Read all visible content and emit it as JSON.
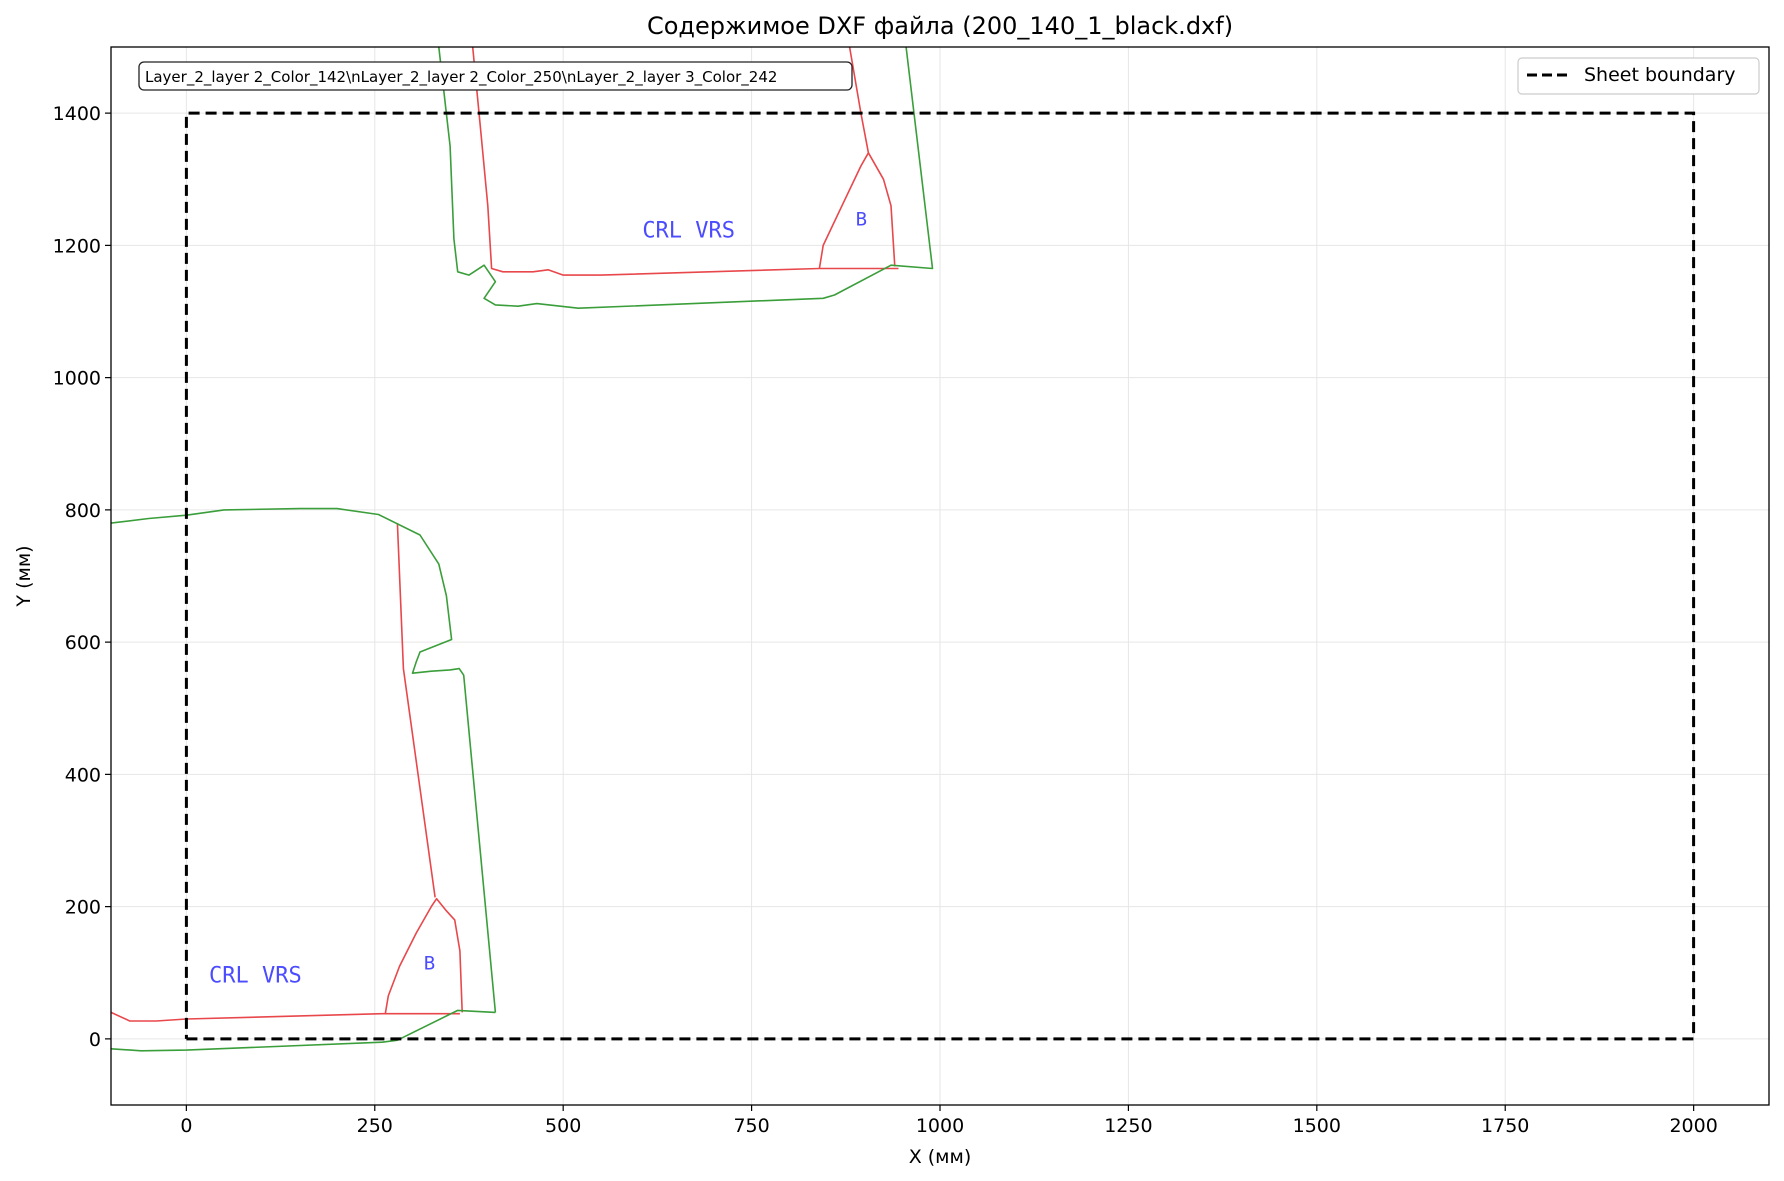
{
  "chart_data": {
    "type": "line",
    "title": "Содержимое DXF файла (200_140_1_black.dxf)",
    "xlabel": "X (мм)",
    "ylabel": "Y (мм)",
    "xlim": [
      -100,
      2100
    ],
    "ylim": [
      -100,
      1500
    ],
    "x_ticks": [
      0,
      250,
      500,
      750,
      1000,
      1250,
      1500,
      1750,
      2000
    ],
    "y_ticks": [
      0,
      200,
      400,
      600,
      800,
      1000,
      1200,
      1400
    ],
    "grid": true,
    "legend": {
      "placement": "top-right",
      "entries": [
        "Sheet boundary"
      ]
    },
    "layer_note": "Layer_2_layer 2_Color_142\\nLayer_2_layer 2_Color_250\\nLayer_2_layer 3_Color_242",
    "sheet_boundary": {
      "name": "Sheet boundary",
      "color": "#000000",
      "style": "dashed",
      "points": [
        [
          0,
          0
        ],
        [
          2000,
          0
        ],
        [
          2000,
          1400
        ],
        [
          0,
          1400
        ],
        [
          0,
          0
        ]
      ]
    },
    "series": [
      {
        "color": "#e8474b",
        "points": [
          [
            -100,
            40
          ],
          [
            -75,
            27
          ],
          [
            -40,
            27
          ],
          [
            0,
            30
          ],
          [
            260,
            38
          ],
          [
            363,
            38
          ]
        ]
      },
      {
        "color": "#e8474b",
        "points": [
          [
            264,
            38
          ],
          [
            268,
            65
          ],
          [
            283,
            110
          ],
          [
            305,
            160
          ],
          [
            325,
            200
          ],
          [
            332,
            212
          ],
          [
            344,
            195
          ],
          [
            356,
            180
          ],
          [
            363,
            133
          ],
          [
            366,
            40
          ]
        ]
      },
      {
        "color": "#e8474b",
        "points": [
          [
            280,
            780
          ],
          [
            288,
            560
          ],
          [
            330,
            214
          ]
        ]
      },
      {
        "color": "#3a9e3a",
        "points": [
          [
            -100,
            780
          ],
          [
            -50,
            787
          ],
          [
            0,
            792
          ],
          [
            50,
            800
          ],
          [
            150,
            802
          ],
          [
            200,
            802
          ],
          [
            255,
            793
          ],
          [
            310,
            762
          ],
          [
            335,
            718
          ],
          [
            345,
            670
          ],
          [
            352,
            604
          ],
          [
            310,
            585
          ],
          [
            305,
            570
          ],
          [
            300,
            553
          ],
          [
            325,
            556
          ],
          [
            350,
            558
          ],
          [
            362,
            560
          ],
          [
            368,
            550
          ],
          [
            410,
            40
          ]
        ]
      },
      {
        "color": "#3a9e3a",
        "points": [
          [
            -100,
            -15
          ],
          [
            -60,
            -18
          ],
          [
            0,
            -17
          ],
          [
            260,
            -5
          ],
          [
            280,
            -2
          ],
          [
            360,
            43
          ],
          [
            410,
            40
          ]
        ]
      },
      {
        "color": "#e8474b",
        "points": [
          [
            380,
            1500
          ],
          [
            390,
            1380
          ],
          [
            400,
            1260
          ],
          [
            405,
            1165
          ],
          [
            420,
            1160
          ],
          [
            460,
            1160
          ],
          [
            480,
            1163
          ],
          [
            500,
            1155
          ],
          [
            550,
            1155
          ],
          [
            840,
            1165
          ],
          [
            945,
            1165
          ]
        ]
      },
      {
        "color": "#e8474b",
        "points": [
          [
            840,
            1165
          ],
          [
            845,
            1200
          ],
          [
            870,
            1260
          ],
          [
            895,
            1320
          ],
          [
            905,
            1340
          ],
          [
            925,
            1300
          ],
          [
            935,
            1260
          ],
          [
            940,
            1168
          ]
        ]
      },
      {
        "color": "#e8474b",
        "points": [
          [
            880,
            1500
          ],
          [
            895,
            1400
          ],
          [
            905,
            1340
          ]
        ]
      },
      {
        "color": "#3a9e3a",
        "points": [
          [
            335,
            1500
          ],
          [
            350,
            1350
          ],
          [
            355,
            1210
          ],
          [
            360,
            1160
          ],
          [
            375,
            1155
          ],
          [
            395,
            1170
          ],
          [
            410,
            1145
          ],
          [
            395,
            1120
          ],
          [
            410,
            1110
          ],
          [
            440,
            1108
          ],
          [
            465,
            1112
          ],
          [
            520,
            1105
          ],
          [
            845,
            1120
          ],
          [
            860,
            1125
          ],
          [
            935,
            1170
          ],
          [
            990,
            1165
          ],
          [
            955,
            1500
          ]
        ]
      }
    ],
    "annotations": [
      {
        "text": "CRL VRS",
        "x": 30,
        "y": 85,
        "color": "#4b4bff"
      },
      {
        "text": "B",
        "x": 315,
        "y": 105,
        "color": "#4b4bff"
      },
      {
        "text": "CRL VRS",
        "x": 605,
        "y": 1212,
        "color": "#4b4bff"
      },
      {
        "text": "B",
        "x": 888,
        "y": 1230,
        "color": "#4b4bff"
      }
    ]
  }
}
